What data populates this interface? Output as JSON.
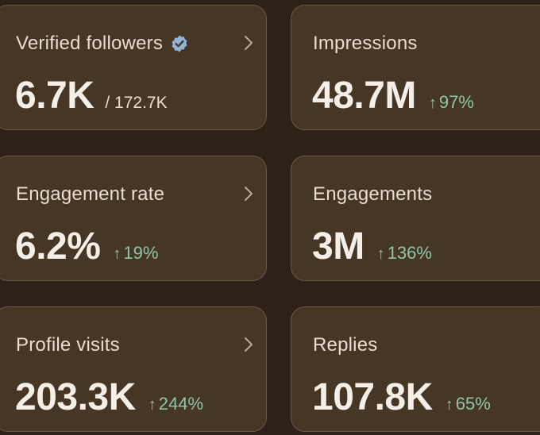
{
  "cards": [
    {
      "title": "Verified followers",
      "value": "6.7K",
      "total": "/ 172.7K",
      "has_verified_badge": true,
      "has_chevron": true
    },
    {
      "title": "Impressions",
      "value": "48.7M",
      "change": "97%",
      "has_chevron": false
    },
    {
      "title": "Engagement rate",
      "value": "6.2%",
      "change": "19%",
      "has_chevron": true
    },
    {
      "title": "Engagements",
      "value": "3M",
      "change": "136%",
      "has_chevron": false
    },
    {
      "title": "Profile visits",
      "value": "203.3K",
      "change": "244%",
      "has_chevron": true
    },
    {
      "title": "Replies",
      "value": "107.8K",
      "change": "65%",
      "has_chevron": false
    }
  ],
  "icons": {
    "verified_badge": "verified-badge-icon",
    "chevron": "chevron-right-icon",
    "trend": "arrow-up-icon"
  },
  "colors": {
    "background": "#2e2218",
    "card": "#463626",
    "card_border": "#6b5846",
    "value_text": "#f6efe7",
    "label_text": "#e9ddd0",
    "positive_change": "#8fc7a4",
    "verified_badge": "#8fb4d8"
  }
}
